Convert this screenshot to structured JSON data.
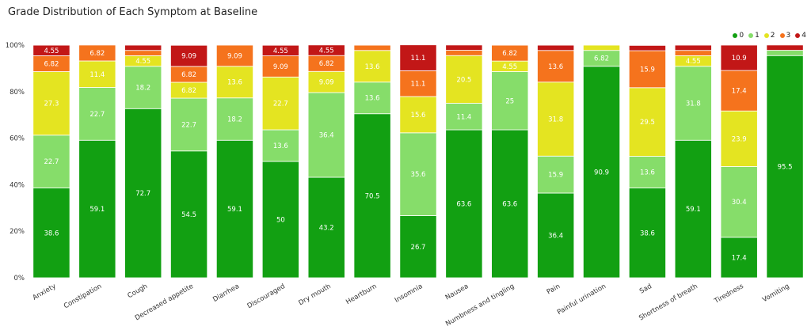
{
  "chart_data": {
    "type": "bar",
    "stacked": true,
    "title": "Grade Distribution of Each Symptom at Baseline",
    "xlabel": "",
    "ylabel": "",
    "ylim": [
      0,
      100
    ],
    "y_ticks": [
      "0%",
      "20%",
      "40%",
      "60%",
      "80%",
      "100%"
    ],
    "legend_position": "top-right",
    "grid": false,
    "categories": [
      "Anxiety",
      "Constipation",
      "Cough",
      "Decreased appetite",
      "Diarrhea",
      "Discouraged",
      "Dry mouth",
      "Heartburn",
      "Insomnia",
      "Nausea",
      "Numbness and tingling",
      "Pain",
      "Painful urination",
      "Sad",
      "Shortness of breath",
      "Tiredness",
      "Vomiting"
    ],
    "series": [
      {
        "name": "0",
        "color": "#12a012",
        "values": [
          38.6,
          59.1,
          72.7,
          54.5,
          59.1,
          50,
          43.2,
          70.5,
          26.7,
          63.6,
          63.6,
          36.4,
          90.9,
          38.6,
          59.1,
          17.4,
          95.5
        ]
      },
      {
        "name": "1",
        "color": "#86dd6a",
        "values": [
          22.7,
          22.7,
          18.2,
          22.7,
          18.2,
          13.6,
          36.4,
          13.6,
          35.6,
          11.4,
          25,
          15.9,
          6.82,
          13.6,
          31.8,
          30.4,
          2.27
        ]
      },
      {
        "name": "2",
        "color": "#e4e421",
        "values": [
          27.3,
          11.4,
          4.55,
          6.82,
          13.6,
          22.7,
          9.09,
          13.6,
          15.6,
          20.5,
          4.55,
          31.8,
          2.27,
          29.5,
          4.55,
          23.9,
          0
        ]
      },
      {
        "name": "3",
        "color": "#f5731d",
        "values": [
          6.82,
          6.82,
          2.27,
          6.82,
          9.09,
          9.09,
          6.82,
          2.27,
          11.1,
          2.27,
          6.82,
          13.6,
          0,
          15.9,
          2.27,
          17.4,
          0
        ]
      },
      {
        "name": "4",
        "color": "#c21717",
        "values": [
          4.55,
          0,
          2.27,
          9.09,
          0,
          4.55,
          4.55,
          0,
          11.1,
          2.27,
          0,
          2.27,
          0,
          2.27,
          2.27,
          10.9,
          2.27
        ]
      }
    ],
    "labels": [
      [
        "38.6",
        "22.7",
        "27.3",
        "6.82",
        "4.55"
      ],
      [
        "59.1",
        "22.7",
        "11.4",
        "6.82",
        ""
      ],
      [
        "72.7",
        "18.2",
        "4.55",
        "",
        ""
      ],
      [
        "54.5",
        "22.7",
        "6.82",
        "6.82",
        "9.09"
      ],
      [
        "59.1",
        "18.2",
        "13.6",
        "9.09",
        ""
      ],
      [
        "50",
        "13.6",
        "22.7",
        "9.09",
        "4.55"
      ],
      [
        "43.2",
        "36.4",
        "9.09",
        "6.82",
        "4.55"
      ],
      [
        "70.5",
        "13.6",
        "13.6",
        "",
        ""
      ],
      [
        "26.7",
        "35.6",
        "15.6",
        "11.1",
        "11.1"
      ],
      [
        "63.6",
        "11.4",
        "20.5",
        "",
        ""
      ],
      [
        "63.6",
        "25",
        "4.55",
        "6.82",
        ""
      ],
      [
        "36.4",
        "15.9",
        "31.8",
        "13.6",
        ""
      ],
      [
        "90.9",
        "6.82",
        "",
        "",
        ""
      ],
      [
        "38.6",
        "13.6",
        "29.5",
        "15.9",
        ""
      ],
      [
        "59.1",
        "31.8",
        "4.55",
        "",
        ""
      ],
      [
        "17.4",
        "30.4",
        "23.9",
        "17.4",
        "10.9"
      ],
      [
        "95.5",
        "",
        "",
        "",
        ""
      ]
    ]
  }
}
